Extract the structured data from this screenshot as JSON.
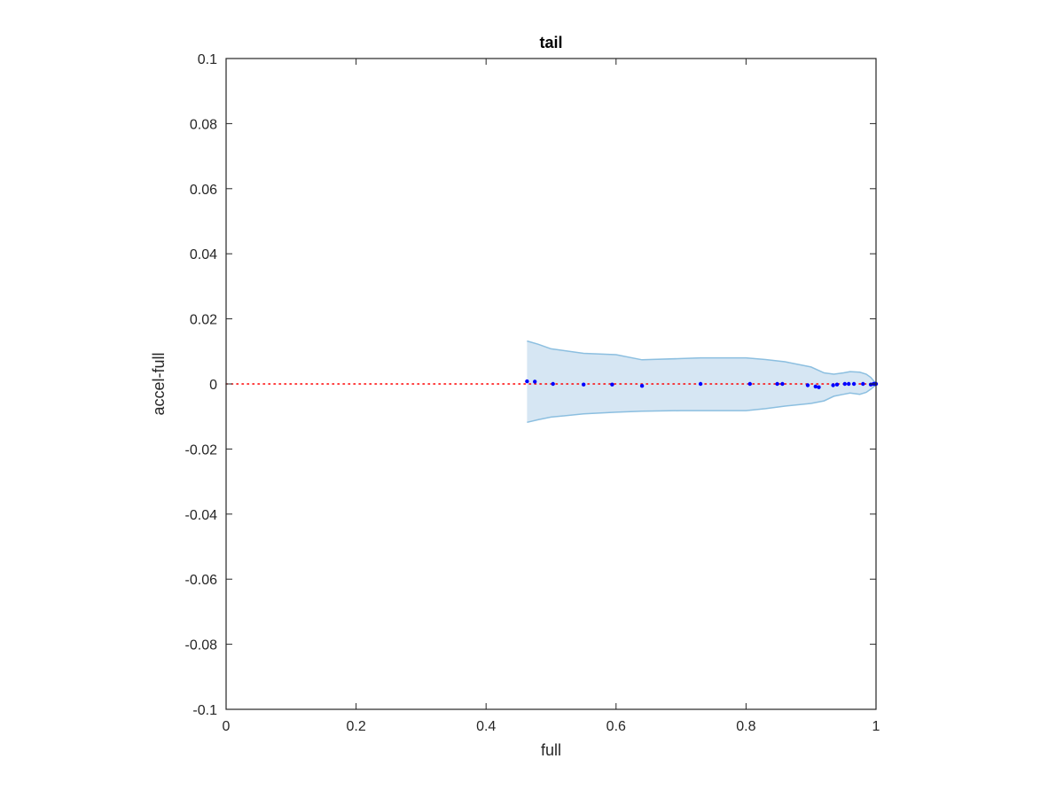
{
  "chart_data": {
    "type": "scatter",
    "title": "tail",
    "xlabel": "full",
    "ylabel": "accel-full",
    "xlim": [
      0,
      1
    ],
    "ylim": [
      -0.1,
      0.1
    ],
    "x_ticks": [
      0,
      0.2,
      0.4,
      0.6,
      0.8,
      1
    ],
    "x_tick_labels": [
      "0",
      "0.2",
      "0.4",
      "0.6",
      "0.8",
      "1"
    ],
    "y_ticks": [
      -0.1,
      -0.08,
      -0.06,
      -0.04,
      -0.02,
      0,
      0.02,
      0.04,
      0.06,
      0.08,
      0.1
    ],
    "y_tick_labels": [
      "-0.1",
      "-0.08",
      "-0.06",
      "-0.04",
      "-0.02",
      "0",
      "0.02",
      "0.04",
      "0.06",
      "0.08",
      "0.1"
    ],
    "grid": false,
    "reference_line": {
      "y": 0,
      "color": "#ff0000",
      "style": "dotted"
    },
    "band": {
      "color": "#d6e6f3",
      "edge_color": "#8cbfe0",
      "x": [
        0.463,
        0.48,
        0.5,
        0.55,
        0.6,
        0.64,
        0.7,
        0.73,
        0.76,
        0.8,
        0.83,
        0.86,
        0.9,
        0.92,
        0.935,
        0.95,
        0.96,
        0.975,
        0.985,
        0.992,
        0.998,
        1.0
      ],
      "upper": [
        0.0132,
        0.0122,
        0.0108,
        0.0094,
        0.009,
        0.0074,
        0.0078,
        0.008,
        0.008,
        0.008,
        0.0075,
        0.0068,
        0.0052,
        0.0034,
        0.003,
        0.0034,
        0.0038,
        0.0036,
        0.003,
        0.002,
        0.0006,
        0.0
      ],
      "lower": [
        -0.0118,
        -0.011,
        -0.0102,
        -0.0092,
        -0.0087,
        -0.0084,
        -0.0082,
        -0.0082,
        -0.0082,
        -0.0082,
        -0.0076,
        -0.0068,
        -0.006,
        -0.0052,
        -0.0038,
        -0.0032,
        -0.0028,
        -0.0032,
        -0.0026,
        -0.0016,
        -0.0006,
        0.0
      ]
    },
    "series": [
      {
        "color": "#0000ff",
        "x": [
          0.463,
          0.475,
          0.503,
          0.55,
          0.594,
          0.64,
          0.73,
          0.806,
          0.848,
          0.856,
          0.895,
          0.907,
          0.912,
          0.934,
          0.94,
          0.952,
          0.958,
          0.966,
          0.98,
          0.992,
          0.996,
          0.998,
          0.999,
          1.0
        ],
        "values": [
          0.0008,
          0.0007,
          0.0,
          -0.0002,
          -0.0002,
          -0.0006,
          0.0,
          0.0,
          0.0,
          0.0,
          -0.0004,
          -0.0008,
          -0.001,
          -0.0004,
          -0.0002,
          0.0,
          0.0,
          0.0,
          0.0,
          -0.0002,
          0.0,
          0.0,
          0.0,
          0.0
        ]
      }
    ]
  }
}
